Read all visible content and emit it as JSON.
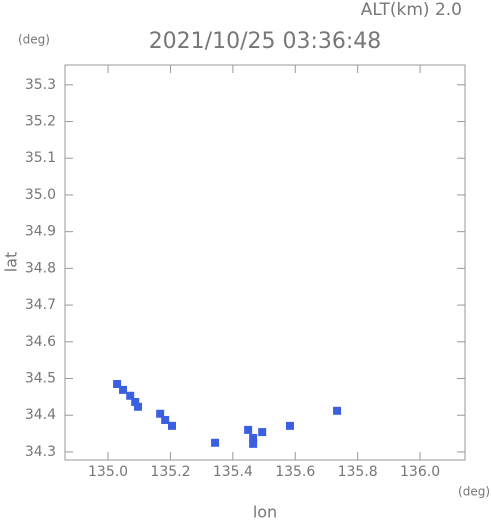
{
  "chart_data": {
    "type": "scatter",
    "title": "2021/10/25 03:36:48",
    "subtitle": "ALT(km) 2.0",
    "y_unit": "(deg)",
    "x_unit": "(deg)",
    "xlabel": "lon",
    "ylabel": "lat",
    "color": "#3a5fe0",
    "x": [
      135.029,
      135.048,
      135.071,
      135.087,
      135.096,
      135.167,
      135.183,
      135.205,
      135.343,
      135.465,
      135.465,
      135.449,
      135.494,
      135.583,
      135.734
    ],
    "values": [
      34.485,
      34.469,
      34.453,
      34.436,
      34.423,
      34.404,
      34.387,
      34.371,
      34.325,
      34.322,
      34.338,
      34.36,
      34.354,
      34.371,
      34.412
    ],
    "xlim": [
      134.862,
      136.144
    ],
    "ylim": [
      34.278,
      35.354
    ],
    "xticks": [
      {
        "value": 135.0,
        "label": "135.0"
      },
      {
        "value": 135.2,
        "label": "135.2"
      },
      {
        "value": 135.4,
        "label": "135.4"
      },
      {
        "value": 135.6,
        "label": "135.6"
      },
      {
        "value": 135.8,
        "label": "135.8"
      },
      {
        "value": 136.0,
        "label": "136.0"
      }
    ],
    "yticks": [
      34.3,
      34.4,
      34.5,
      34.6,
      34.7,
      34.8,
      34.9,
      {
        "value": 35.0,
        "label": "35.0"
      },
      35.1,
      35.2,
      35.3
    ]
  }
}
